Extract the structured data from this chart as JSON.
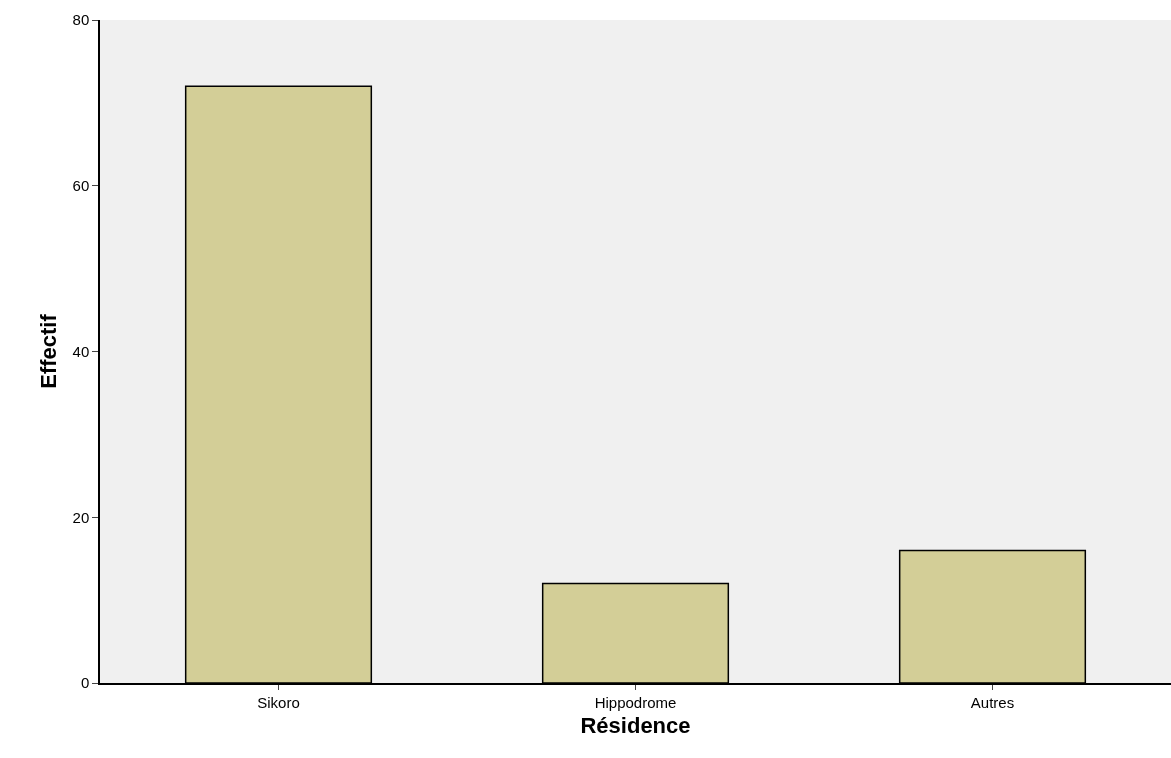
{
  "chart_data": {
    "type": "bar",
    "xlabel": "Résidence",
    "ylabel": "Effectif",
    "categories": [
      "Sikoro",
      "Hippodrome",
      "Autres"
    ],
    "values": [
      72,
      12,
      16
    ],
    "color": "#d3ce97",
    "ylim": [
      0,
      80
    ],
    "yticks": [
      0,
      20,
      40,
      60,
      80
    ],
    "grid": false,
    "legend": false
  }
}
